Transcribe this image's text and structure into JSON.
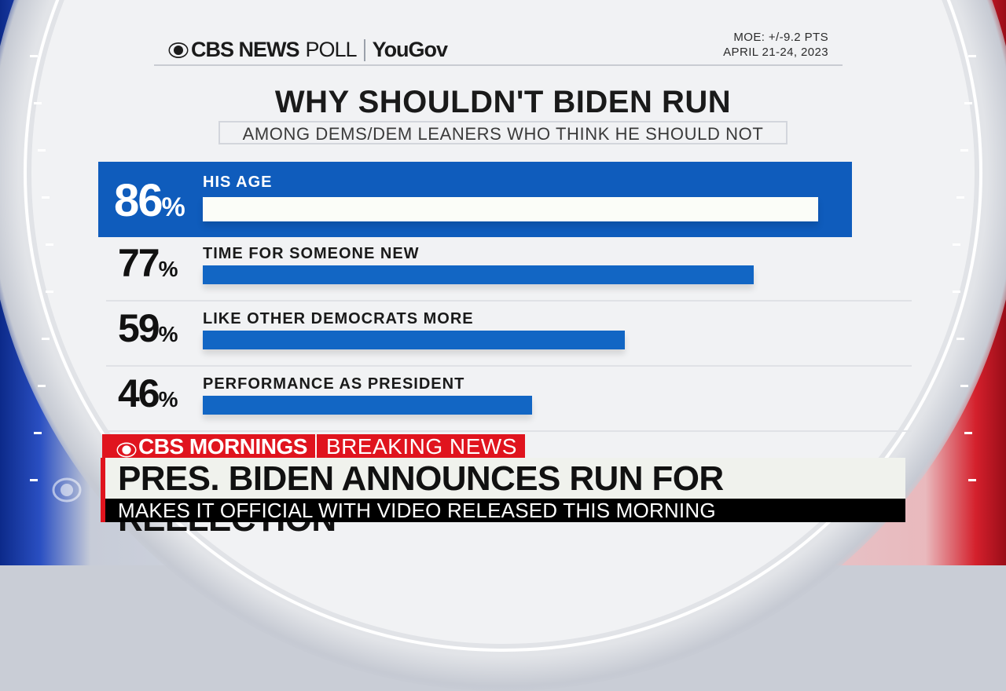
{
  "header": {
    "brand": "CBS NEWS",
    "brand_suffix": "POLL",
    "partner": "YouGov",
    "moe": "MOE:  +/-9.2 PTS",
    "dates": "APRIL 21-24, 2023"
  },
  "chart_data": {
    "type": "bar",
    "title": "WHY SHOULDN'T BIDEN RUN",
    "subtitle": "AMONG DEMS/DEM LEANERS WHO THINK HE SHOULD NOT",
    "categories": [
      "HIS AGE",
      "TIME FOR SOMEONE NEW",
      "LIKE OTHER DEMOCRATS MORE",
      "PERFORMANCE AS PRESIDENT"
    ],
    "values": [
      86,
      77,
      59,
      46
    ],
    "value_labels": [
      "86",
      "77",
      "59",
      "46"
    ],
    "unit": "%",
    "highlighted_index": 0,
    "orientation": "horizontal",
    "xlim": [
      0,
      100
    ],
    "colors": {
      "bar": "#1266c4",
      "highlight_panel": "#0f5cbc",
      "highlight_bar": "#fbfdf8"
    }
  },
  "lower_third": {
    "show": "CBS MORNINGS",
    "tag": "BREAKING NEWS",
    "headline": "PRES. BIDEN ANNOUNCES RUN FOR REELECTION",
    "subheadline": "MAKES IT OFFICIAL WITH VIDEO RELEASED THIS MORNING",
    "accent": "#e0141e"
  },
  "icons": {
    "brand_logo": "cbs-eye-icon",
    "network_bug": "cbs-eye-icon"
  }
}
